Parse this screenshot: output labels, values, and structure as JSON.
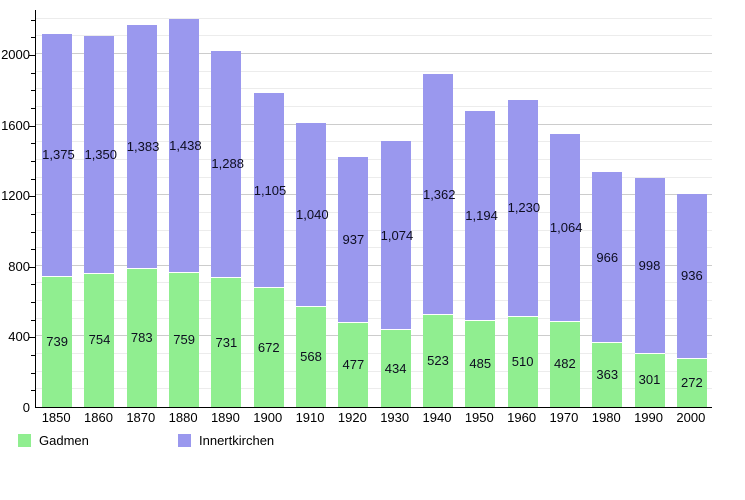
{
  "chart_data": {
    "type": "bar",
    "stacked": true,
    "title": "",
    "categories": [
      "1850",
      "1860",
      "1870",
      "1880",
      "1890",
      "1900",
      "1910",
      "1920",
      "1930",
      "1940",
      "1950",
      "1960",
      "1970",
      "1980",
      "1990",
      "2000"
    ],
    "series": [
      {
        "name": "Gadmen",
        "color": "#90EE90",
        "values": [
          739,
          754,
          783,
          759,
          731,
          672,
          568,
          477,
          434,
          523,
          485,
          510,
          482,
          363,
          301,
          272
        ]
      },
      {
        "name": "Innertkirchen",
        "color": "#9A98EE",
        "values": [
          1375,
          1350,
          1383,
          1438,
          1288,
          1105,
          1040,
          937,
          1074,
          1362,
          1194,
          1230,
          1064,
          966,
          998,
          936
        ]
      }
    ],
    "xlabel": "",
    "ylabel": "",
    "ylim": [
      0,
      2255
    ],
    "yticks": [
      0,
      400,
      800,
      1200,
      1600,
      2000
    ],
    "minor_gridline_step": 100,
    "major_gridline_step": 400,
    "grid": true,
    "value_labels": true,
    "value_label_format": "thousands-comma",
    "legend_position": "bottom"
  },
  "legend": {
    "items": [
      {
        "label": "Gadmen",
        "color": "#90EE90"
      },
      {
        "label": "Innertkirchen",
        "color": "#9A98EE"
      }
    ]
  }
}
